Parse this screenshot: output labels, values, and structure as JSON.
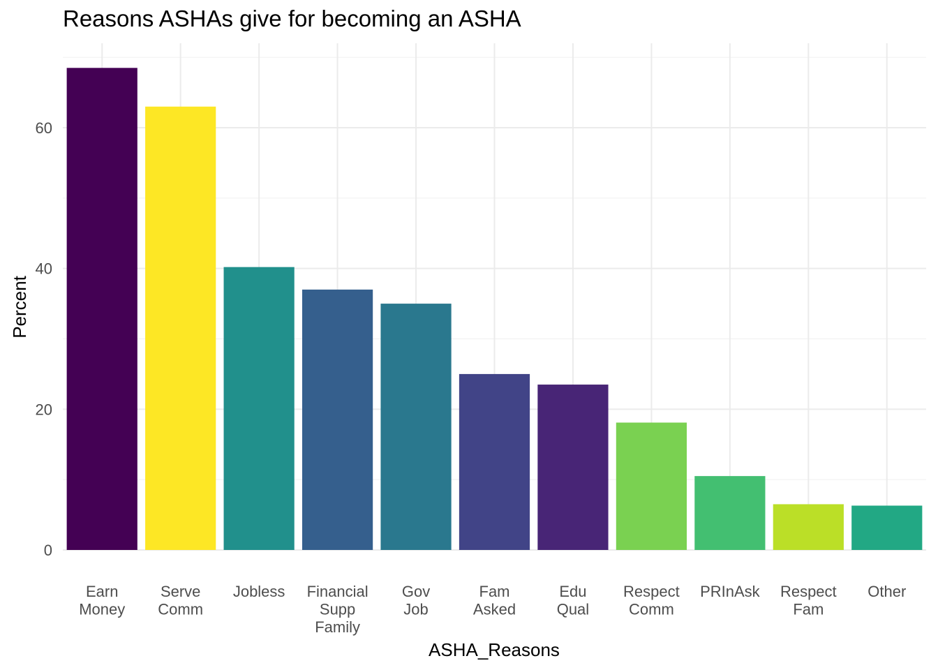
{
  "chart_data": {
    "type": "bar",
    "title": "Reasons ASHAs give for becoming an ASHA",
    "xlabel": "ASHA_Reasons",
    "ylabel": "Percent",
    "ylim": [
      0,
      70
    ],
    "yticks": [
      0,
      20,
      40,
      60
    ],
    "grid": true,
    "categories": [
      [
        "Earn",
        "Money"
      ],
      [
        "Serve",
        "Comm"
      ],
      [
        "Jobless"
      ],
      [
        "Financial",
        "Supp",
        "Family"
      ],
      [
        "Gov",
        "Job"
      ],
      [
        "Fam",
        "Asked"
      ],
      [
        "Edu",
        "Qual"
      ],
      [
        "Respect",
        "Comm"
      ],
      [
        "PRInAsk"
      ],
      [
        "Respect",
        "Fam"
      ],
      [
        "Other"
      ]
    ],
    "values": [
      68.5,
      63.0,
      40.2,
      37.0,
      35.0,
      25.0,
      23.5,
      18.1,
      10.5,
      6.5,
      6.3
    ],
    "colors": [
      "#440154",
      "#FDE725",
      "#21908C",
      "#355F8D",
      "#2A788E",
      "#414487",
      "#482576",
      "#7AD151",
      "#43BF71",
      "#BBDF27",
      "#22A884"
    ]
  }
}
